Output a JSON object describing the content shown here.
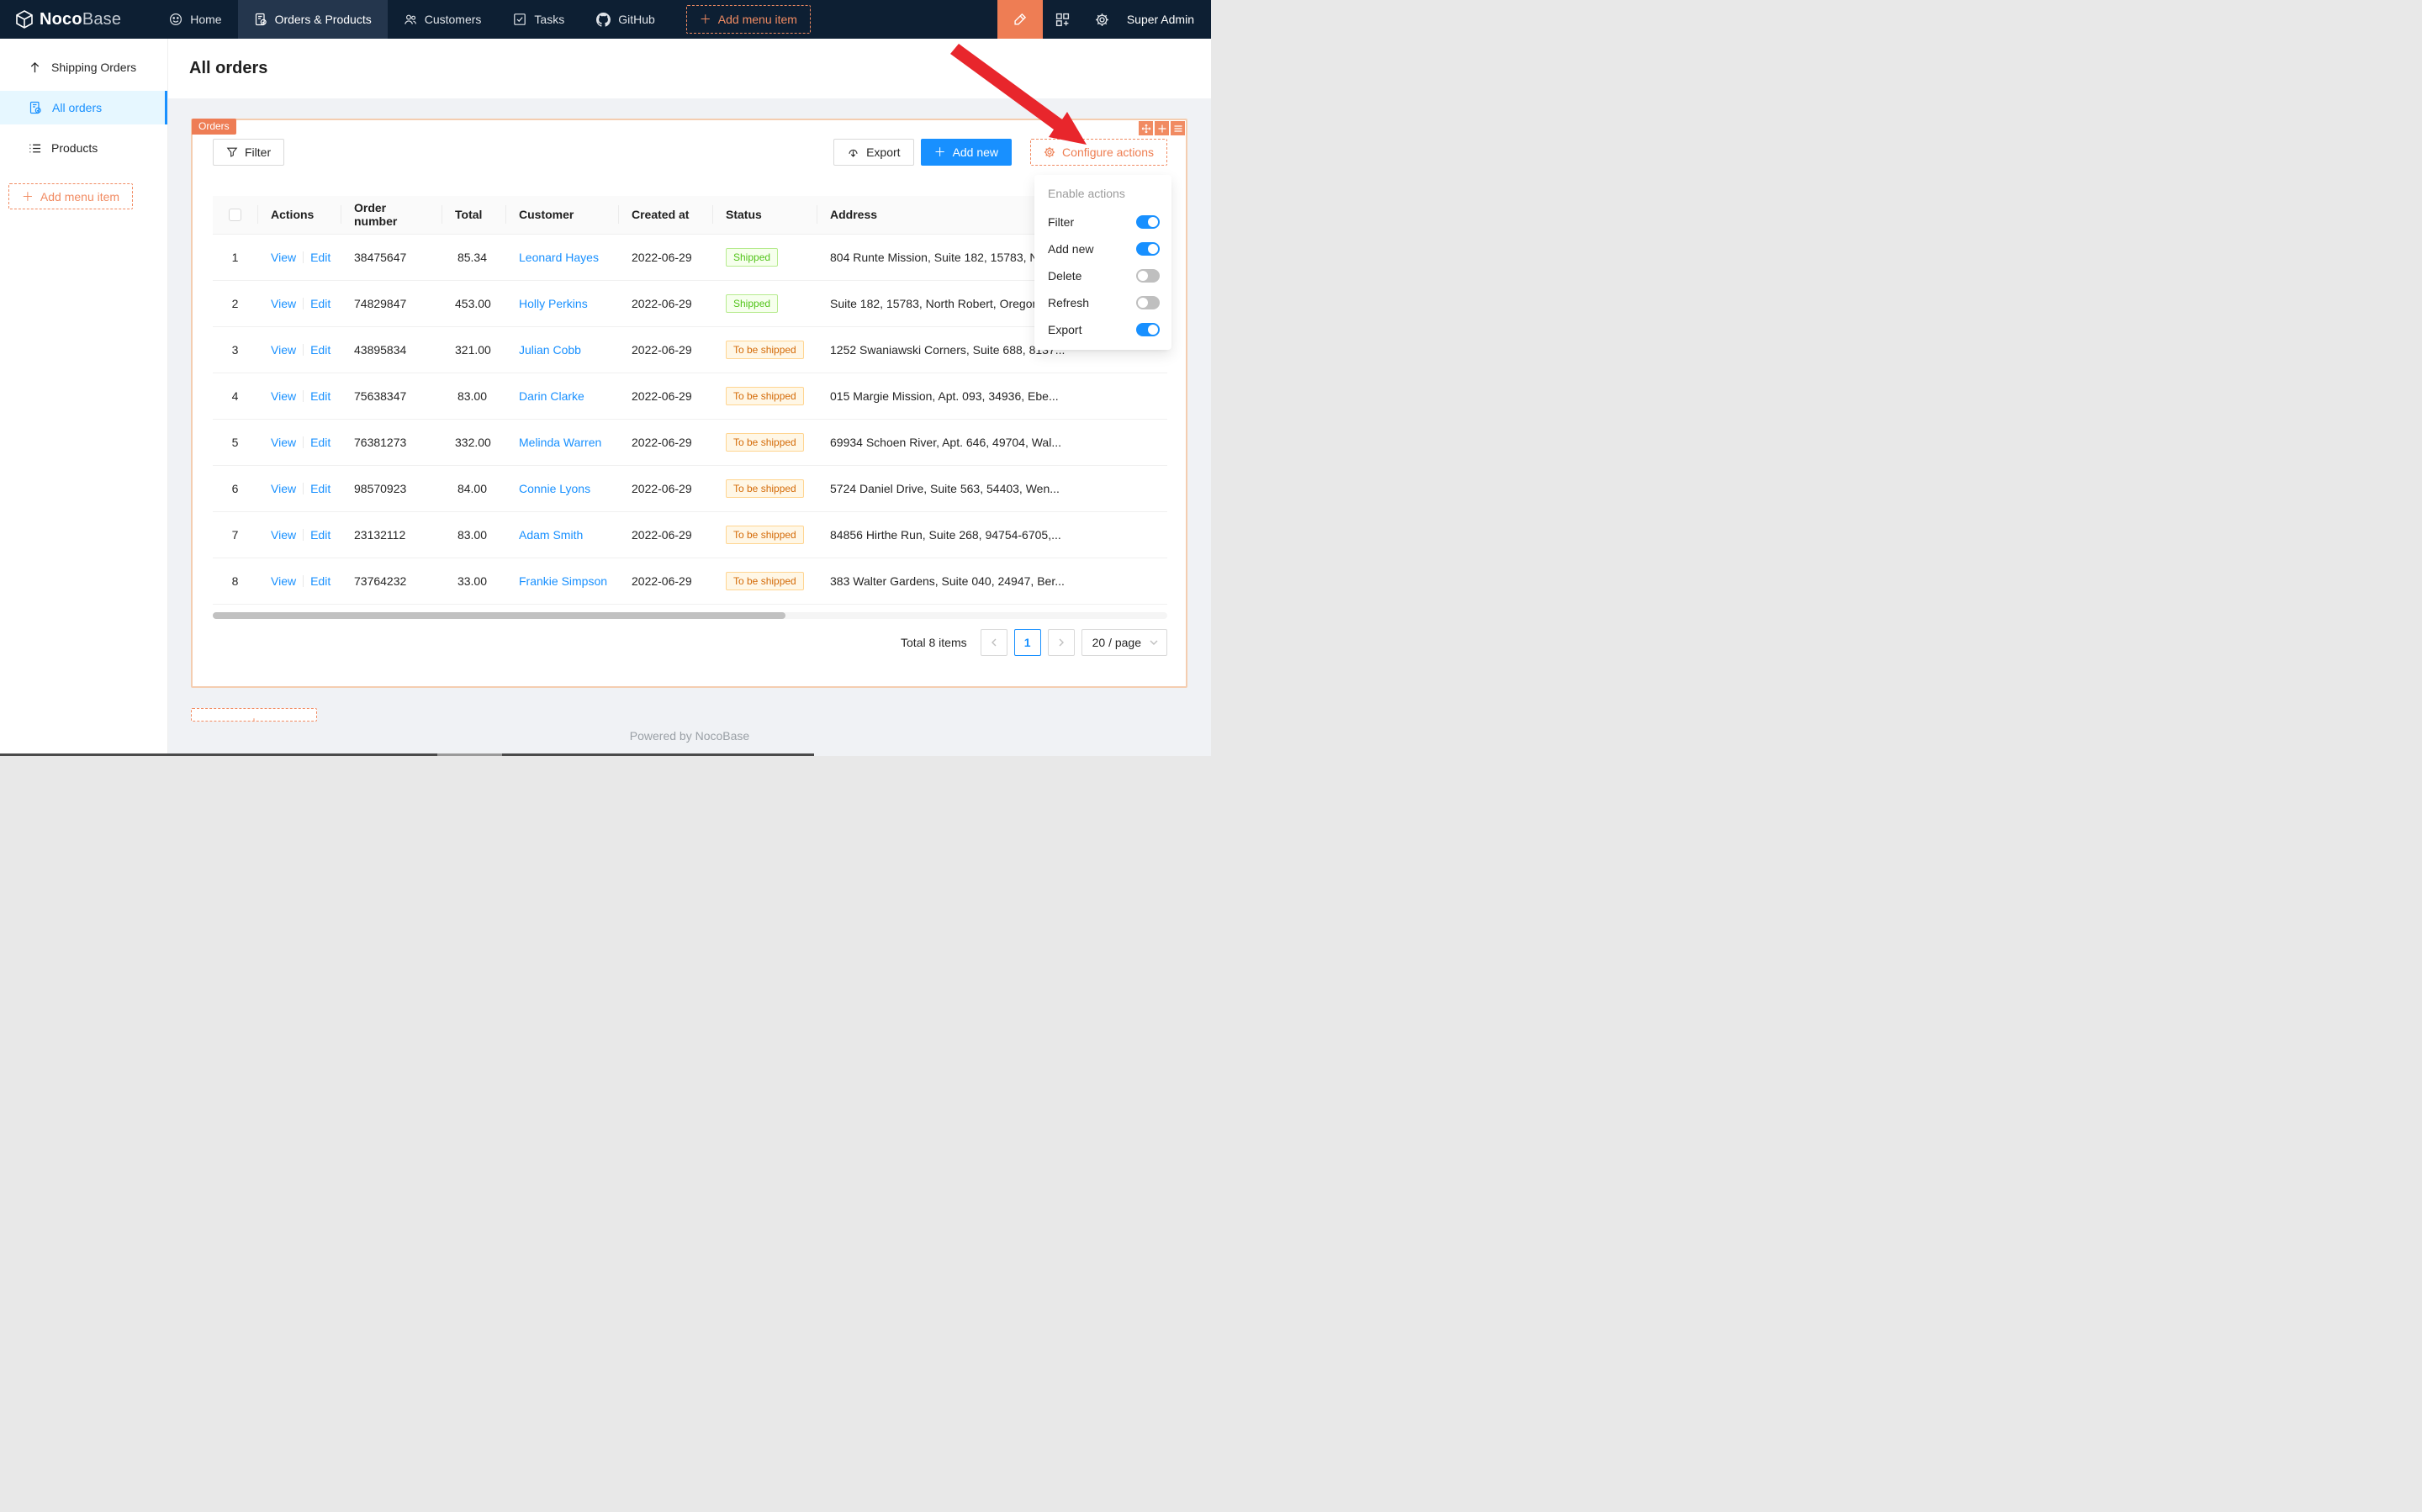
{
  "navbar": {
    "logo": {
      "text_bold": "Noco",
      "text_light": "Base",
      "icon": "nocobase-logo-icon"
    },
    "items": [
      {
        "label": "Home",
        "icon": "smile-icon",
        "active": false
      },
      {
        "label": "Orders & Products",
        "icon": "order-doc-icon",
        "active": true
      },
      {
        "label": "Customers",
        "icon": "team-icon",
        "active": false
      },
      {
        "label": "Tasks",
        "icon": "check-square-icon",
        "active": false
      },
      {
        "label": "GitHub",
        "icon": "github-icon",
        "active": false
      }
    ],
    "add_menu_item_label": "Add menu item",
    "right": {
      "edit_button_icon": "highlighter-icon",
      "plugins_icon": "appstore-add-icon",
      "settings_icon": "gear-icon",
      "user": "Super Admin"
    }
  },
  "sidebar": {
    "items": [
      {
        "label": "Shipping Orders",
        "icon": "arrow-up-icon",
        "active": false
      },
      {
        "label": "All orders",
        "icon": "order-doc-check-icon",
        "active": true
      },
      {
        "label": "Products",
        "icon": "list-icon",
        "active": false
      }
    ],
    "add_menu_item_label": "Add menu item"
  },
  "page": {
    "title": "All orders"
  },
  "block": {
    "tag": "Orders",
    "designer_icons": [
      "drag-icon",
      "add-icon",
      "menu-icon"
    ],
    "toolbar": {
      "filter": "Filter",
      "export": "Export",
      "add_new": "Add new",
      "configure": "Configure actions"
    },
    "table": {
      "headers": [
        "",
        "Actions",
        "Order number",
        "Total",
        "Customer",
        "Created at",
        "Status",
        "Address"
      ],
      "actions": {
        "view": "View",
        "edit": "Edit"
      },
      "rows": [
        {
          "index": "1",
          "order_number": "38475647",
          "total": "85.34",
          "customer": "Leonard Hayes",
          "created_at": "2022-06-29",
          "status": "Shipped",
          "status_type": "success",
          "address": "804 Runte Mission, Suite 182, 15783, North Robert"
        },
        {
          "index": "2",
          "order_number": "74829847",
          "total": "453.00",
          "customer": "Holly Perkins",
          "created_at": "2022-06-29",
          "status": "Shipped",
          "status_type": "success",
          "address": "Suite 182, 15783, North Robert, Oregon"
        },
        {
          "index": "3",
          "order_number": "43895834",
          "total": "321.00",
          "customer": "Julian Cobb",
          "created_at": "2022-06-29",
          "status": "To be shipped",
          "status_type": "warning",
          "address": "1252 Swaniawski Corners, Suite 688, 8137..."
        },
        {
          "index": "4",
          "order_number": "75638347",
          "total": "83.00",
          "customer": "Darin Clarke",
          "created_at": "2022-06-29",
          "status": "To be shipped",
          "status_type": "warning",
          "address": "015 Margie Mission, Apt. 093, 34936, Ebe..."
        },
        {
          "index": "5",
          "order_number": "76381273",
          "total": "332.00",
          "customer": "Melinda Warren",
          "created_at": "2022-06-29",
          "status": "To be shipped",
          "status_type": "warning",
          "address": "69934 Schoen River, Apt. 646, 49704, Wal..."
        },
        {
          "index": "6",
          "order_number": "98570923",
          "total": "84.00",
          "customer": "Connie Lyons",
          "created_at": "2022-06-29",
          "status": "To be shipped",
          "status_type": "warning",
          "address": "5724 Daniel Drive, Suite 563, 54403, Wen..."
        },
        {
          "index": "7",
          "order_number": "23132112",
          "total": "83.00",
          "customer": "Adam Smith",
          "created_at": "2022-06-29",
          "status": "To be shipped",
          "status_type": "warning",
          "address": "84856 Hirthe Run, Suite 268, 94754-6705,..."
        },
        {
          "index": "8",
          "order_number": "73764232",
          "total": "33.00",
          "customer": "Frankie Simpson",
          "created_at": "2022-06-29",
          "status": "To be shipped",
          "status_type": "warning",
          "address": "383 Walter Gardens, Suite 040, 24947, Ber..."
        }
      ]
    },
    "pagination": {
      "total": "Total 8 items",
      "page": "1",
      "page_size": "20 / page"
    }
  },
  "dropdown": {
    "header": "Enable actions",
    "items": [
      {
        "label": "Filter",
        "enabled": true
      },
      {
        "label": "Add new",
        "enabled": true
      },
      {
        "label": "Delete",
        "enabled": false
      },
      {
        "label": "Refresh",
        "enabled": false
      },
      {
        "label": "Export",
        "enabled": true
      }
    ]
  },
  "add_block_label": "Add block",
  "footer": {
    "powered_by": "Powered by NocoBase"
  },
  "colors": {
    "navbar_bg": "#0d1f33",
    "accent_orange": "#f18b62",
    "primary_blue": "#1890ff",
    "card_border": "#f4cdb0",
    "status_success": "#52c41a",
    "status_warning": "#d46b08",
    "annotation_arrow_red": "#e8262c"
  }
}
